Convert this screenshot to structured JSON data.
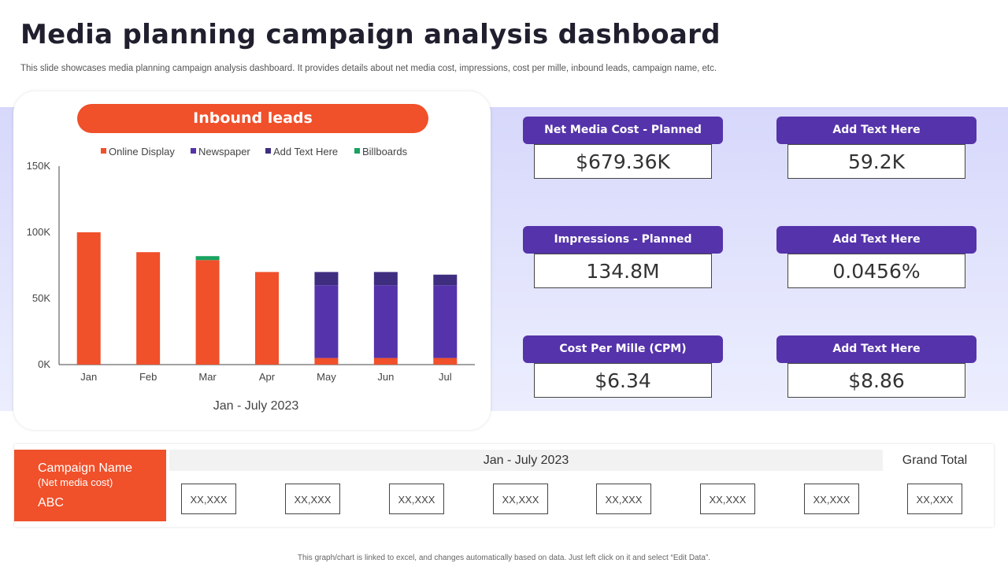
{
  "title": "Media planning campaign analysis dashboard",
  "subtitle": "This slide showcases media planning campaign analysis dashboard. It provides details about net media cost, impressions, cost per mille, inbound leads, campaign name, etc.",
  "colors": {
    "accent": "#f0502a",
    "purple": "#5533aa",
    "dark_purple": "#3f2e80",
    "green": "#1aa260"
  },
  "chart_data": {
    "type": "bar",
    "stacked": true,
    "title": "Inbound leads",
    "xlabel": "Jan - July 2023",
    "ylabel": "",
    "ylim": [
      0,
      150000
    ],
    "yticks": [
      0,
      50000,
      100000,
      150000
    ],
    "ytick_labels": [
      "0K",
      "50K",
      "100K",
      "150K"
    ],
    "categories": [
      "Jan",
      "Feb",
      "Mar",
      "Apr",
      "May",
      "Jun",
      "Jul"
    ],
    "series": [
      {
        "name": "Online Display",
        "color": "#f0502a",
        "values": [
          100000,
          85000,
          79000,
          70000,
          5000,
          5000,
          5000
        ]
      },
      {
        "name": "Newspaper",
        "color": "#5533aa",
        "values": [
          0,
          0,
          0,
          0,
          55000,
          55000,
          55000
        ]
      },
      {
        "name": "Add Text Here",
        "color": "#3f2e80",
        "values": [
          0,
          0,
          0,
          0,
          10000,
          10000,
          8000
        ]
      },
      {
        "name": "Billboards",
        "color": "#1aa260",
        "values": [
          0,
          0,
          3000,
          0,
          0,
          0,
          0
        ]
      }
    ],
    "legend": "top"
  },
  "kpis": [
    {
      "label": "Net Media Cost - Planned",
      "value": "$679.36K"
    },
    {
      "label": "Add Text Here",
      "value": "59.2K"
    },
    {
      "label": "Impressions - Planned",
      "value": "134.8M"
    },
    {
      "label": "Add Text Here",
      "value": "0.0456%"
    },
    {
      "label": "Cost Per Mille (CPM)",
      "value": "$6.34"
    },
    {
      "label": "Add Text Here",
      "value": "$8.86"
    }
  ],
  "table": {
    "campaign_label": "Campaign Name",
    "campaign_sub": "(Net media cost)",
    "campaign_value": "ABC",
    "period": "Jan - July 2023",
    "grand_total": "Grand Total",
    "values": [
      "XX,XXX",
      "XX,XXX",
      "XX,XXX",
      "XX,XXX",
      "XX,XXX",
      "XX,XXX",
      "XX,XXX",
      "XX,XXX"
    ]
  },
  "footer": "This graph/chart is linked to excel, and changes automatically based on data. Just left click on it and select “Edit Data”."
}
